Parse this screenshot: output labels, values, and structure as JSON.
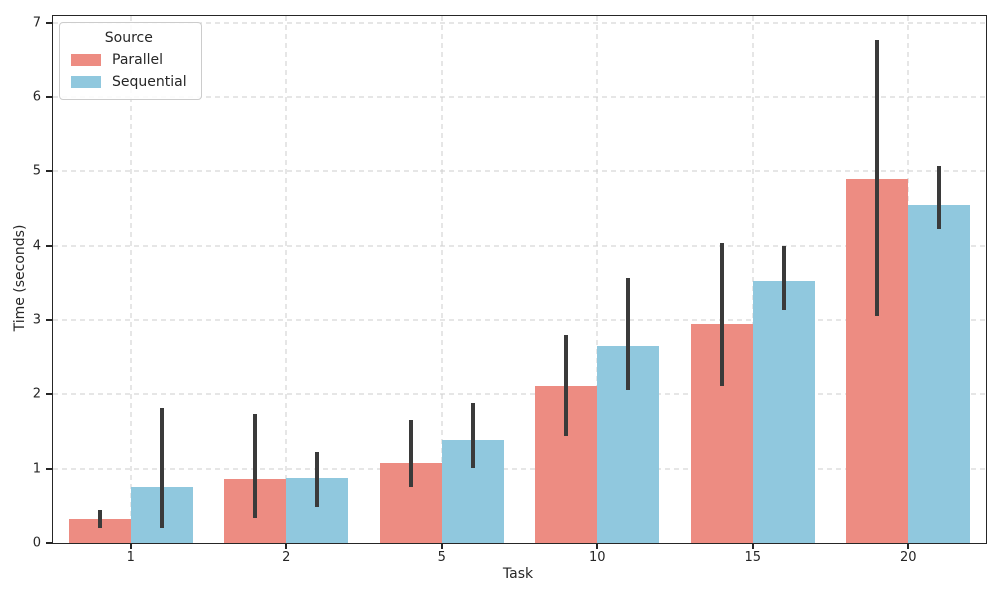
{
  "chart_data": {
    "type": "bar",
    "title": "",
    "xlabel": "Task",
    "ylabel": "Time (seconds)",
    "categories": [
      "1",
      "2",
      "5",
      "10",
      "15",
      "20"
    ],
    "series": [
      {
        "name": "Parallel",
        "color": "#ed8c82",
        "values": [
          0.32,
          0.86,
          1.08,
          2.11,
          2.94,
          4.9
        ],
        "err_low": [
          0.2,
          0.34,
          0.75,
          1.44,
          2.11,
          3.06
        ],
        "err_high": [
          0.44,
          1.74,
          1.66,
          2.8,
          4.03,
          6.77
        ]
      },
      {
        "name": "Sequential",
        "color": "#90c8de",
        "values": [
          0.76,
          0.87,
          1.38,
          2.65,
          3.52,
          4.55
        ],
        "err_low": [
          0.2,
          0.49,
          1.01,
          2.06,
          3.13,
          4.23
        ],
        "err_high": [
          1.82,
          1.22,
          1.89,
          3.56,
          3.99,
          5.07
        ]
      }
    ],
    "ylim": [
      0,
      7.09
    ],
    "yticks": [
      0,
      1,
      2,
      3,
      4,
      5,
      6,
      7
    ],
    "grid": "dashed-both-axes",
    "legend": {
      "title": "Source",
      "position": "upper-left"
    },
    "errorbar_color": "#3a3a3a",
    "grid_color": "#cdcdcd",
    "spine_color": "#262626"
  }
}
